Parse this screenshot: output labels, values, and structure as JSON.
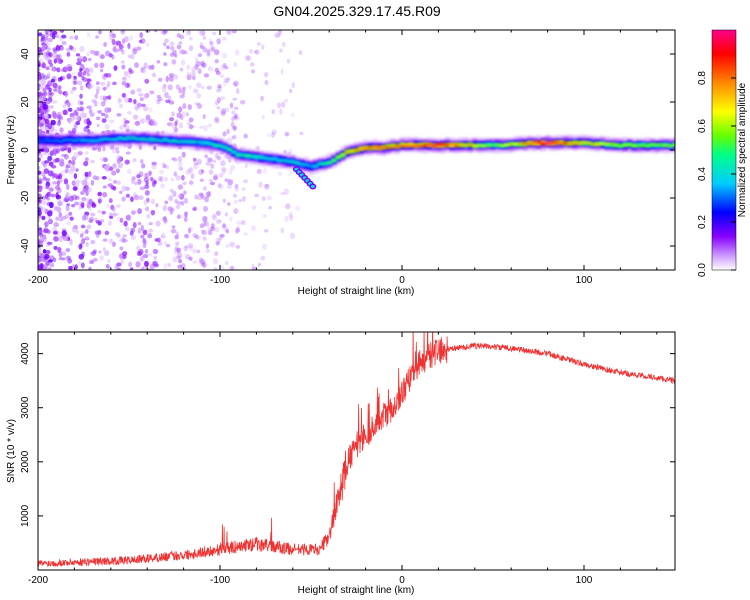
{
  "title": "GN04.2025.329.17.45.R09",
  "chart_data": [
    {
      "type": "heatmap",
      "xlabel": "Height of straight line (km)",
      "ylabel": "Frequency (Hz)",
      "xlim": [
        -200,
        150
      ],
      "ylim": [
        -50,
        50
      ],
      "xticks": [
        -200,
        -100,
        0,
        100
      ],
      "yticks": [
        -40,
        -20,
        0,
        20,
        40
      ],
      "colorbar": {
        "label": "Normalized spectral amplitude",
        "range": [
          0,
          1
        ],
        "ticks": [
          "0.0",
          "0.2",
          "0.4",
          "0.6",
          "0.8"
        ],
        "colormap": [
          "#ffffff",
          "#cc99ff",
          "#8800ff",
          "#0000ff",
          "#00ccff",
          "#00ff88",
          "#66ff00",
          "#ffff00",
          "#ff8800",
          "#ff0000",
          "#ff0088"
        ]
      },
      "ridge": {
        "x": [
          -200,
          -170,
          -150,
          -130,
          -110,
          -100,
          -90,
          -80,
          -70,
          -60,
          -50,
          -40,
          -30,
          -20,
          -10,
          0,
          20,
          50,
          80,
          100,
          120,
          150
        ],
        "frequency": [
          4,
          4,
          5,
          4,
          3,
          2,
          -2,
          -3,
          -4,
          -5,
          -7,
          -5,
          -1,
          1,
          1,
          2,
          2,
          2,
          3,
          3,
          2,
          2
        ],
        "amplitude": [
          0.3,
          0.4,
          0.45,
          0.45,
          0.45,
          0.5,
          0.5,
          0.5,
          0.45,
          0.45,
          0.4,
          0.55,
          0.75,
          0.85,
          0.9,
          0.9,
          1.0,
          0.6,
          1.0,
          0.8,
          0.65,
          0.6
        ]
      },
      "branch": {
        "x": [
          -58,
          -48
        ],
        "frequency": [
          -8,
          -16
        ]
      }
    },
    {
      "type": "line",
      "xlabel": "Height of straight line (km)",
      "ylabel": "SNR (10 * v/v)",
      "xlim": [
        -200,
        150
      ],
      "ylim": [
        0,
        4400
      ],
      "xticks": [
        -200,
        -100,
        0,
        100
      ],
      "yticks": [
        1000,
        2000,
        3000,
        4000
      ],
      "color": "#ee3333",
      "envelope": {
        "x": [
          -200,
          -150,
          -120,
          -100,
          -80,
          -60,
          -45,
          -40,
          -35,
          -30,
          -25,
          -20,
          -15,
          -10,
          -5,
          0,
          10,
          20,
          30,
          40,
          60,
          80,
          100,
          120,
          150
        ],
        "snr": [
          120,
          180,
          280,
          380,
          480,
          380,
          380,
          650,
          1300,
          2000,
          2300,
          2500,
          2650,
          2850,
          3000,
          3300,
          3850,
          4050,
          4100,
          4150,
          4100,
          4000,
          3800,
          3650,
          3500
        ]
      }
    }
  ]
}
